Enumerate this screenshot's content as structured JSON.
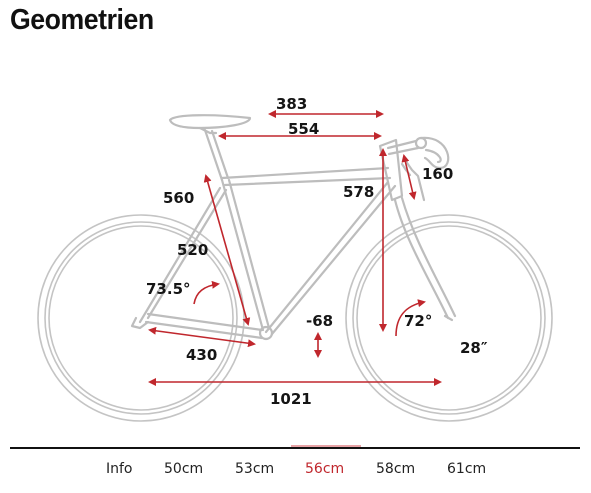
{
  "page": {
    "title": "Geometrien"
  },
  "accent_color": "#c0272d",
  "dimensions": {
    "top_tube_horizontal": "383",
    "reach_top": "554",
    "seat_tube_ct": "560",
    "seat_tube_cc": "520",
    "seat_angle": "73.5°",
    "head_tube": "160",
    "stack": "578",
    "bb_drop": "-68",
    "head_angle": "72°",
    "chainstay": "430",
    "wheel_size": "28″",
    "wheelbase": "1021"
  },
  "tabs": [
    {
      "label": "Info",
      "active": false
    },
    {
      "label": "50cm",
      "active": false
    },
    {
      "label": "53cm",
      "active": false
    },
    {
      "label": "56cm",
      "active": true
    },
    {
      "label": "58cm",
      "active": false
    },
    {
      "label": "61cm",
      "active": false
    }
  ]
}
